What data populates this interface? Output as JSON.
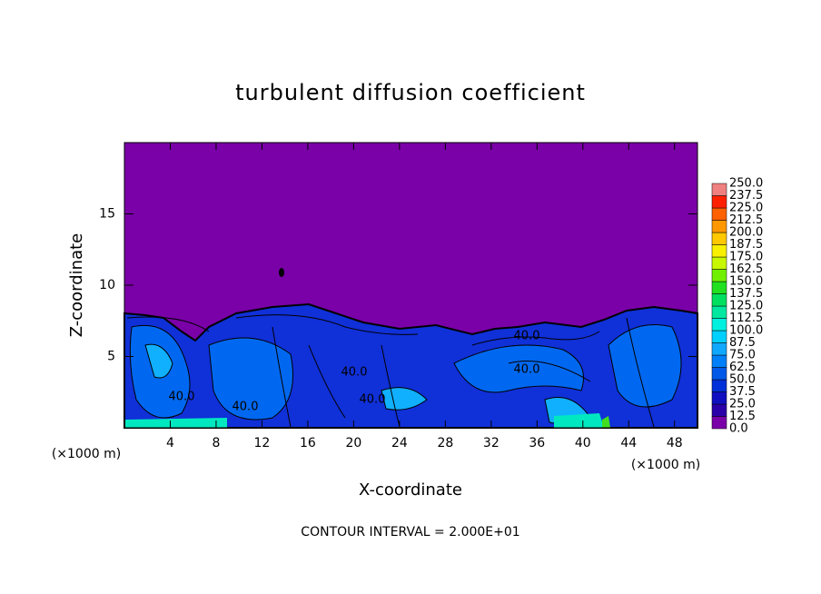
{
  "chart_data": {
    "type": "contour",
    "title": "turbulent diffusion coefficient",
    "x_label": "X-coordinate",
    "y_label": "Z-coordinate",
    "x_unit_left": "(×1000 m)",
    "x_unit_right": "(×1000 m)",
    "footnote": "CONTOUR INTERVAL = 2.000E+01",
    "xlim": [
      0,
      50
    ],
    "xticks": [
      4,
      8,
      12,
      16,
      20,
      24,
      28,
      32,
      36,
      40,
      44,
      48
    ],
    "ylim": [
      0,
      20
    ],
    "yticks": [
      5,
      10,
      15
    ],
    "contour_labels": [
      "40.0",
      "40.0",
      "40.0",
      "40.0",
      "40.0",
      "40.0"
    ],
    "colorbar_levels": [
      {
        "value": 0,
        "label": "0.0"
      },
      {
        "value": 12.5,
        "label": "12.5"
      },
      {
        "value": 25,
        "label": "25.0"
      },
      {
        "value": 37.5,
        "label": "37.5"
      },
      {
        "value": 50,
        "label": "50.0"
      },
      {
        "value": 62.5,
        "label": "62.5"
      },
      {
        "value": 75,
        "label": "75.0"
      },
      {
        "value": 87.5,
        "label": "87.5"
      },
      {
        "value": 100,
        "label": "100.0"
      },
      {
        "value": 112.5,
        "label": "112.5"
      },
      {
        "value": 125,
        "label": "125.0"
      },
      {
        "value": 137.5,
        "label": "137.5"
      },
      {
        "value": 150,
        "label": "150.0"
      },
      {
        "value": 162.5,
        "label": "162.5"
      },
      {
        "value": 175,
        "label": "175.0"
      },
      {
        "value": 187.5,
        "label": "187.5"
      },
      {
        "value": 200,
        "label": "200.0"
      },
      {
        "value": 212.5,
        "label": "212.5"
      },
      {
        "value": 225,
        "label": "225.0"
      },
      {
        "value": 237.5,
        "label": "237.5"
      },
      {
        "value": 250,
        "label": "250.0"
      }
    ],
    "colorbar_colors": [
      "#7a00a8",
      "#2a00a8",
      "#1010c0",
      "#0030d8",
      "#0058e8",
      "#0080f8",
      "#10a8ff",
      "#00d0ff",
      "#00f0e0",
      "#00e8a0",
      "#00e060",
      "#20e020",
      "#70f000",
      "#c8f800",
      "#f8f000",
      "#ffc800",
      "#ff9800",
      "#ff6000",
      "#ff2000",
      "#f08080"
    ]
  }
}
